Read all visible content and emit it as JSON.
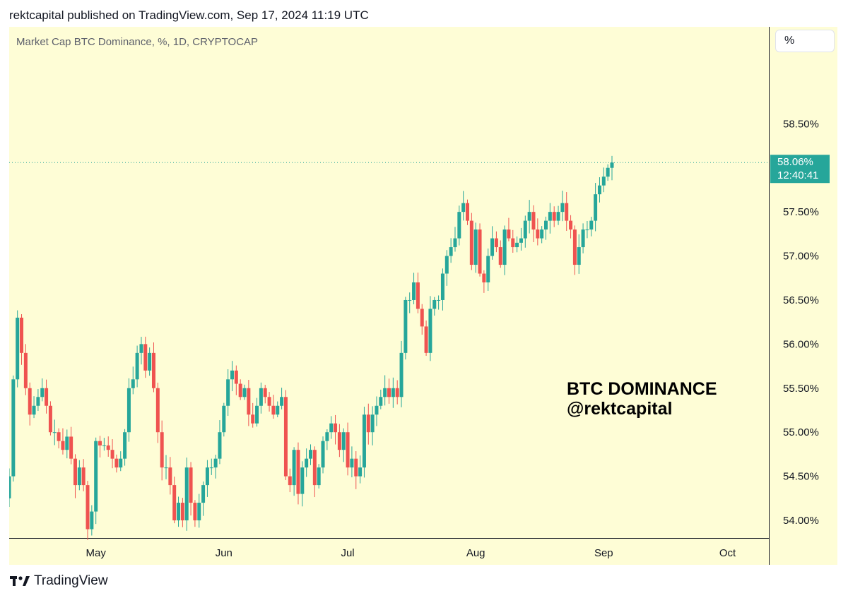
{
  "header": {
    "published_line": "rektcapital published on TradingView.com, Sep 17, 2024 11:19 UTC"
  },
  "toolbar": {
    "unit_label": "%"
  },
  "footer": {
    "brand": "TradingView"
  },
  "colors": {
    "background": "#fefdd6",
    "up": "#26a69a",
    "down": "#ef5350",
    "axis_line": "#131722",
    "text": "#131722",
    "muted_text": "#5d606b",
    "price_tag": "#26a69a",
    "price_line": "#26a69a"
  },
  "chart_data": {
    "type": "candlestick",
    "title": "Market Cap BTC Dominance, %, 1D, CRYPTOCAP",
    "annotation": [
      "BTC DOMINANCE",
      "@rektcapital"
    ],
    "xlabel": "",
    "ylabel": "",
    "x_ticks": [
      "May",
      "Jun",
      "Jul",
      "Aug",
      "Sep",
      "Oct"
    ],
    "x_range": [
      "2024-04-10",
      "2024-10-11"
    ],
    "ylim": [
      53.8,
      59.6
    ],
    "y_ticks": [
      58.5,
      58.0,
      57.5,
      57.0,
      56.5,
      56.0,
      55.5,
      55.0,
      54.5,
      54.0
    ],
    "y_tick_labels": [
      "58.50%",
      "58.00%",
      "57.50%",
      "57.00%",
      "56.50%",
      "56.00%",
      "55.50%",
      "55.00%",
      "54.50%",
      "54.00%"
    ],
    "last_price": {
      "value": 58.06,
      "label": "58.06%",
      "countdown": "12:40:41"
    },
    "grid": false,
    "start_date": "2024-04-10",
    "closes": [
      54.5,
      55.6,
      56.3,
      55.9,
      55.5,
      55.2,
      55.3,
      55.4,
      55.5,
      55.3,
      55.0,
      55.0,
      54.9,
      54.8,
      54.95,
      54.7,
      54.4,
      54.6,
      54.4,
      53.9,
      54.1,
      54.9,
      54.85,
      54.85,
      54.8,
      54.7,
      54.6,
      54.7,
      55.0,
      55.5,
      55.6,
      55.9,
      56.0,
      55.7,
      55.9,
      55.5,
      55.0,
      54.6,
      54.6,
      54.4,
      54.0,
      54.2,
      54.0,
      54.6,
      54.2,
      54.0,
      54.2,
      54.4,
      54.6,
      54.6,
      54.7,
      55.0,
      55.3,
      55.6,
      55.7,
      55.55,
      55.4,
      55.5,
      55.2,
      55.1,
      55.3,
      55.5,
      55.4,
      55.3,
      55.2,
      55.3,
      55.4,
      54.5,
      54.4,
      54.8,
      54.3,
      54.6,
      54.7,
      54.8,
      54.4,
      54.6,
      54.9,
      55.0,
      55.1,
      55.0,
      54.8,
      55.0,
      54.6,
      54.7,
      54.5,
      54.6,
      55.2,
      55.0,
      55.2,
      55.3,
      55.4,
      55.5,
      55.4,
      55.5,
      55.4,
      55.9,
      56.5,
      56.5,
      56.7,
      56.4,
      56.2,
      55.9,
      56.4,
      56.5,
      56.5,
      56.8,
      57.0,
      57.1,
      57.2,
      57.5,
      57.6,
      57.4,
      56.9,
      57.3,
      56.8,
      56.7,
      57.0,
      57.2,
      57.1,
      56.9,
      57.3,
      57.2,
      57.1,
      57.15,
      57.2,
      57.4,
      57.5,
      57.3,
      57.2,
      57.3,
      57.4,
      57.5,
      57.4,
      57.5,
      57.6,
      57.4,
      57.3,
      56.9,
      57.1,
      57.3,
      57.3,
      57.4,
      57.7,
      57.8,
      57.9,
      58.0,
      58.06
    ]
  }
}
